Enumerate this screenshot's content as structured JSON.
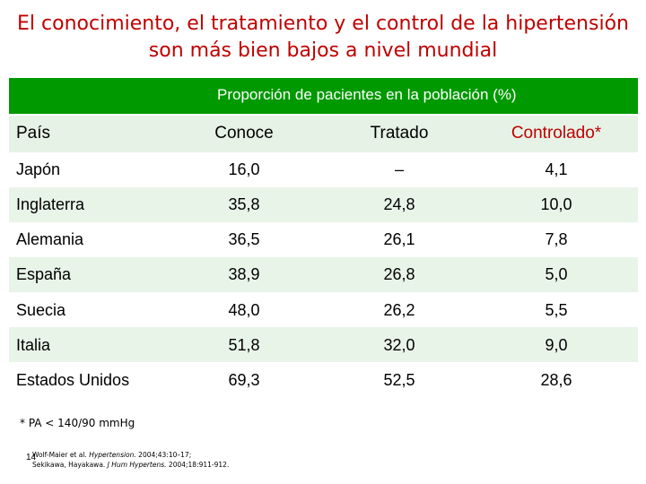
{
  "slide": {
    "title_line1": "El conocimiento, el tratamiento y el control de la hipertensión",
    "title_line2": "son más bien bajos a nivel mundial",
    "banner": "Proporción de pacientes en la población (%)"
  },
  "table": {
    "headers": [
      "País",
      "Conoce",
      "Tratado",
      "Controlado*"
    ],
    "rows": [
      [
        "Japón",
        "16,0",
        "–",
        "4,1"
      ],
      [
        "Inglaterra",
        "35,8",
        "24,8",
        "10,0"
      ],
      [
        "Alemania",
        "36,5",
        "26,1",
        "7,8"
      ],
      [
        "España",
        "38,9",
        "26,8",
        "5,0"
      ],
      [
        "Suecia",
        "48,0",
        "26,2",
        "5,5"
      ],
      [
        "Italia",
        "51,8",
        "32,0",
        "9,0"
      ],
      [
        "Estados Unidos",
        "69,3",
        "52,5",
        "28,6"
      ]
    ]
  },
  "footnote": "* PA < 140/90 mmHg",
  "references": {
    "ref1_authors": "Wolf-Maier et al.",
    "ref1_journal": "Hypertension.",
    "ref1_detail": "2004;43:10–17;",
    "ref2_authors": "Sekikawa, Hayakawa.",
    "ref2_journal": "J Hum Hypertens.",
    "ref2_detail": "2004;18:911-912."
  },
  "page_number": "14",
  "colors": {
    "accent_red": "#c00000",
    "banner_green": "#009900",
    "row_tint": "#e6f2e6"
  }
}
